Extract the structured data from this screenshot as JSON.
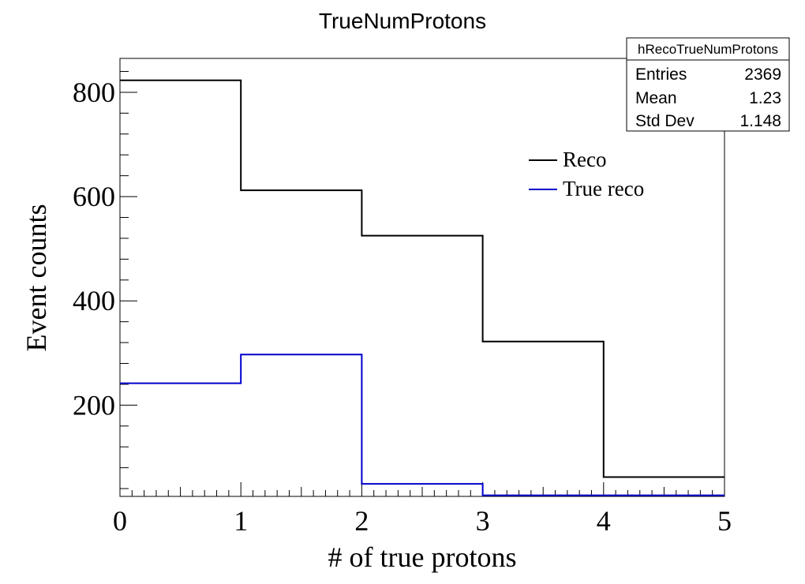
{
  "chart_data": {
    "type": "histogram",
    "title": "TrueNumProtons",
    "xlabel": "# of true protons",
    "ylabel": "Event counts",
    "xlim": [
      0,
      5
    ],
    "ylim": [
      25,
      865
    ],
    "x_ticks": [
      0,
      1,
      2,
      3,
      4,
      5
    ],
    "y_ticks": [
      200,
      400,
      600,
      800
    ],
    "bin_edges": [
      0,
      1,
      2,
      3,
      4,
      5
    ],
    "series": [
      {
        "name": "Reco",
        "color": "#000000",
        "values": [
          823,
          612,
          525,
          322,
          62
        ]
      },
      {
        "name": "True reco",
        "color": "#0000cc",
        "values": [
          242,
          297,
          49,
          27,
          27
        ]
      }
    ],
    "legend_position": "top-right"
  },
  "stats_box": {
    "name": "hRecoTrueNumProtons",
    "rows": [
      {
        "label": "Entries",
        "value": "2369"
      },
      {
        "label": "Mean",
        "value": "1.23"
      },
      {
        "label": "Std Dev",
        "value": "1.148"
      }
    ]
  }
}
